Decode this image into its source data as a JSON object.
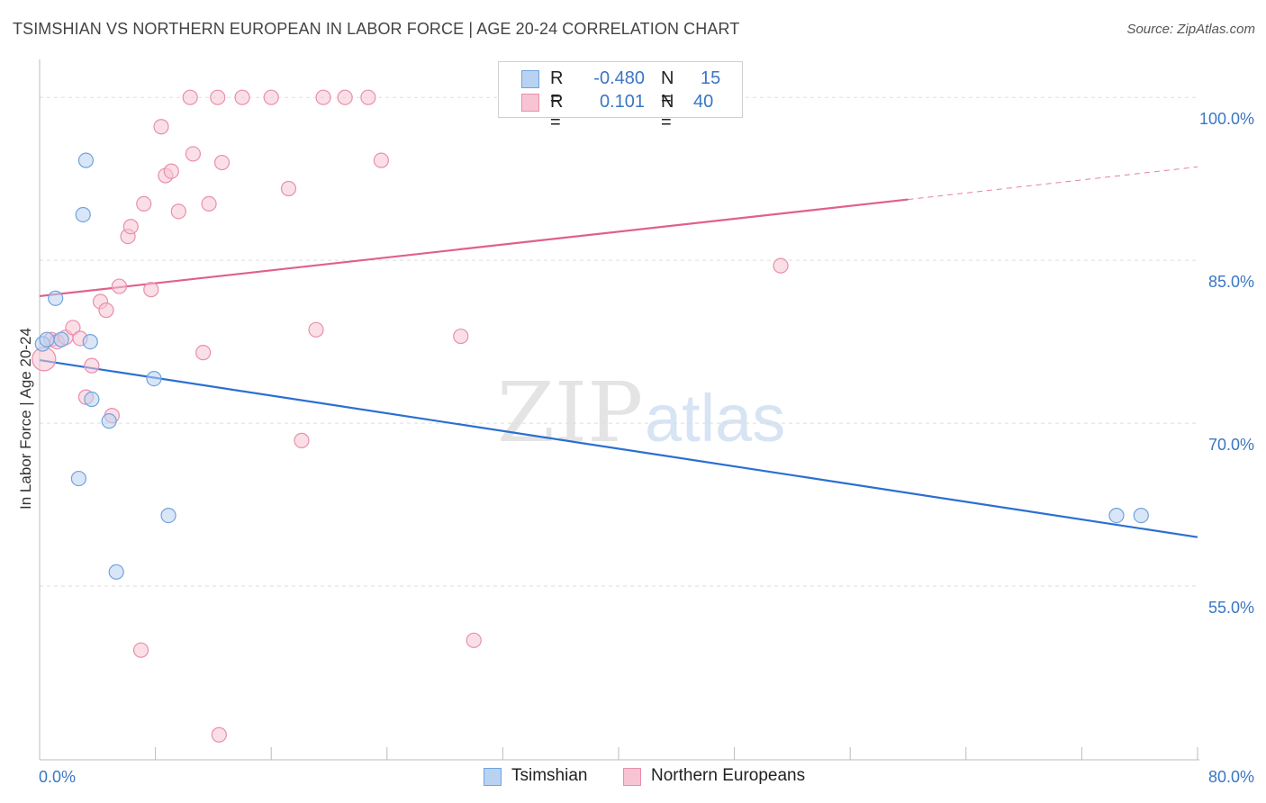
{
  "chart_data": {
    "type": "scatter",
    "title": "TSIMSHIAN VS NORTHERN EUROPEAN IN LABOR FORCE | AGE 20-24 CORRELATION CHART",
    "source": "Source: ZipAtlas.com",
    "xlabel": "",
    "ylabel": "In Labor Force | Age 20-24",
    "xlim": [
      0,
      80
    ],
    "ylim": [
      39,
      103
    ],
    "x_ticks": [
      {
        "value": 0,
        "label": "0.0%"
      },
      {
        "value": 80,
        "label": "80.0%"
      }
    ],
    "y_ticks": [
      {
        "value": 55,
        "label": "55.0%"
      },
      {
        "value": 70,
        "label": "70.0%"
      },
      {
        "value": 85,
        "label": "85.0%"
      },
      {
        "value": 100,
        "label": "100.0%"
      }
    ],
    "grid": true,
    "watermark": {
      "zip": "ZIP",
      "atlas": "atlas"
    },
    "series": [
      {
        "name": "Tsimshian",
        "color": "#6fa3e0",
        "fill": "#b9d2f1",
        "line_color": "#2b6fd1",
        "R": "-0.480",
        "N": "15",
        "points": [
          [
            0.2,
            77.3
          ],
          [
            0.5,
            77.7
          ],
          [
            1.1,
            81.5
          ],
          [
            1.5,
            77.7
          ],
          [
            3.5,
            77.5
          ],
          [
            3.0,
            89.2
          ],
          [
            3.2,
            94.2
          ],
          [
            3.6,
            72.2
          ],
          [
            2.7,
            64.9
          ],
          [
            4.8,
            70.2
          ],
          [
            5.3,
            56.3
          ],
          [
            7.9,
            74.1
          ],
          [
            8.9,
            61.5
          ],
          [
            74.4,
            61.5
          ],
          [
            76.1,
            61.5
          ]
        ],
        "trend": {
          "x0": 0,
          "y0": 75.8,
          "x1": 80,
          "y1": 59.5
        }
      },
      {
        "name": "Northern Europeans",
        "color": "#e98fab",
        "fill": "#f7c4d3",
        "line_color": "#e0608a",
        "R": "0.101",
        "N": "40",
        "points": [
          [
            0.3,
            75.9
          ],
          [
            0.8,
            77.7
          ],
          [
            1.2,
            77.5
          ],
          [
            1.8,
            77.9
          ],
          [
            2.3,
            78.8
          ],
          [
            2.8,
            77.8
          ],
          [
            3.2,
            72.4
          ],
          [
            3.6,
            75.3
          ],
          [
            4.2,
            81.2
          ],
          [
            4.6,
            80.4
          ],
          [
            5.0,
            70.7
          ],
          [
            5.5,
            82.6
          ],
          [
            6.1,
            87.2
          ],
          [
            6.3,
            88.1
          ],
          [
            7.2,
            90.2
          ],
          [
            7.7,
            82.3
          ],
          [
            8.4,
            97.3
          ],
          [
            8.7,
            92.8
          ],
          [
            9.1,
            93.2
          ],
          [
            9.6,
            89.5
          ],
          [
            10.4,
            100.0
          ],
          [
            10.6,
            94.8
          ],
          [
            11.3,
            76.5
          ],
          [
            11.7,
            90.2
          ],
          [
            12.3,
            100.0
          ],
          [
            12.6,
            94.0
          ],
          [
            14.0,
            100.0
          ],
          [
            16.0,
            100.0
          ],
          [
            17.2,
            91.6
          ],
          [
            18.1,
            68.4
          ],
          [
            19.1,
            78.6
          ],
          [
            19.6,
            100.0
          ],
          [
            21.1,
            100.0
          ],
          [
            22.7,
            100.0
          ],
          [
            23.6,
            94.2
          ],
          [
            29.1,
            78.0
          ],
          [
            30.0,
            50.0
          ],
          [
            51.2,
            84.5
          ],
          [
            7.0,
            49.1
          ],
          [
            12.4,
            41.3
          ]
        ],
        "trend": {
          "x0": 0,
          "y0": 81.7,
          "x1": 60,
          "y1": 90.6
        },
        "trend_dashed_to": {
          "x": 80,
          "y": 93.6
        }
      }
    ]
  }
}
